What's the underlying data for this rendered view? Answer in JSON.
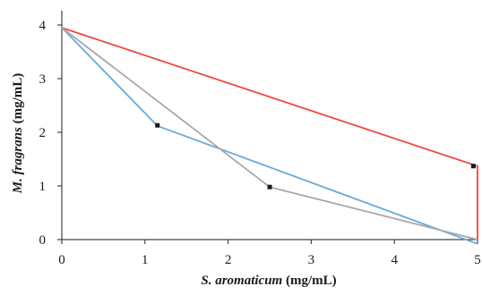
{
  "chart_data": {
    "type": "line",
    "title": "",
    "xlabel": {
      "italic": "S. aromaticum",
      "rest": " (mg/mL)"
    },
    "ylabel": {
      "italic": "M. fragrans",
      "rest": " (mg/mL)"
    },
    "xlim": [
      0,
      5
    ],
    "ylim": [
      0,
      4
    ],
    "xticks": [
      "0",
      "1",
      "2",
      "3",
      "4",
      "5"
    ],
    "yticks": [
      "0",
      "1",
      "2",
      "3",
      "4"
    ],
    "grid": false,
    "legend": "none",
    "series": [
      {
        "color": "#f04545",
        "points": [
          [
            0,
            3.95
          ],
          [
            5,
            1.37
          ],
          [
            5,
            0
          ]
        ],
        "markers": [
          [
            4.95,
            1.37
          ]
        ]
      },
      {
        "color": "#6aaad6",
        "points": [
          [
            0,
            3.95
          ],
          [
            1.15,
            2.12
          ],
          [
            5,
            -0.08
          ]
        ],
        "markers": [
          [
            1.15,
            2.13
          ]
        ]
      },
      {
        "color": "#a9a9a9",
        "points": [
          [
            0,
            3.95
          ],
          [
            2.5,
            0.98
          ],
          [
            5,
            0
          ]
        ],
        "markers": [
          [
            2.5,
            0.98
          ]
        ]
      }
    ]
  }
}
